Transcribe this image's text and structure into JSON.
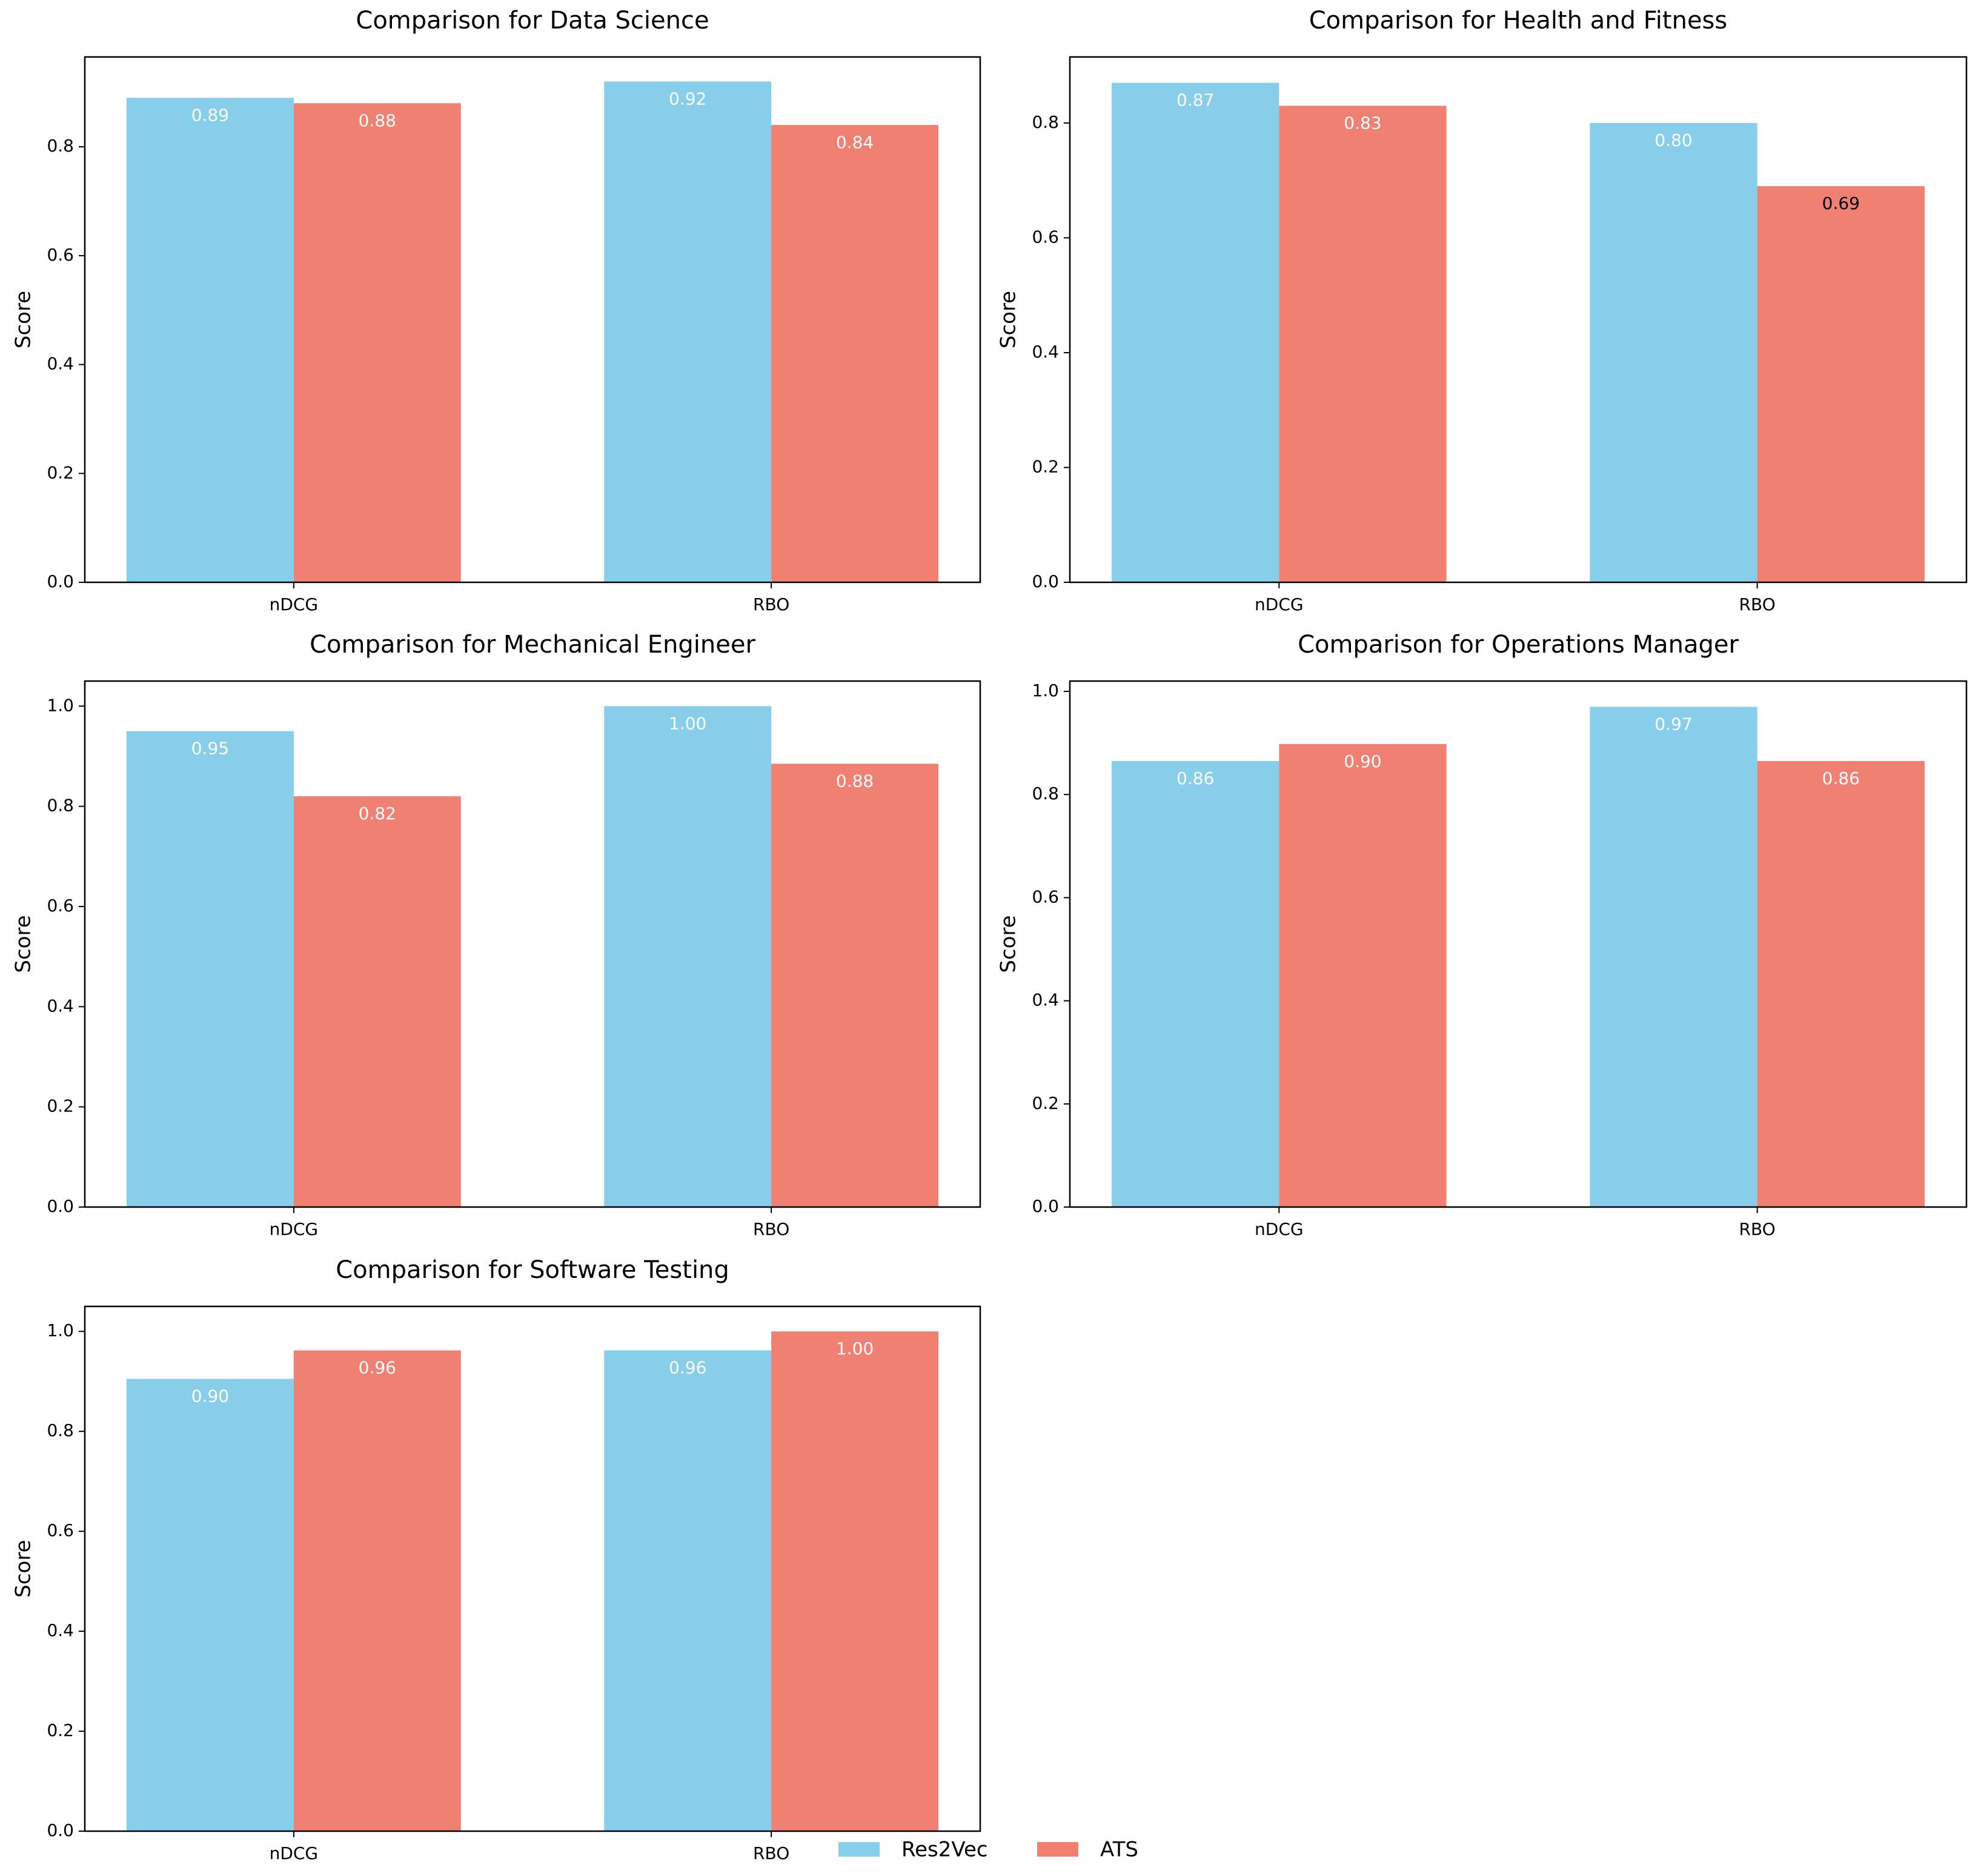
{
  "colors": {
    "res2vec": "#87CEEB",
    "ats": "#F08072"
  },
  "legend": [
    {
      "name": "Res2Vec",
      "color": "#87CEEB"
    },
    {
      "name": "ATS",
      "color": "#F08072"
    }
  ],
  "chart_data": [
    {
      "type": "bar",
      "title": "Comparison for Data Science",
      "xlabel": "",
      "ylabel": "Score",
      "categories": [
        "nDCG",
        "RBO"
      ],
      "series": [
        {
          "name": "Res2Vec",
          "values": [
            0.89,
            0.92
          ]
        },
        {
          "name": "ATS",
          "values": [
            0.88,
            0.84
          ]
        }
      ],
      "value_labels": [
        [
          "0.89",
          "0.92"
        ],
        [
          "0.88",
          "0.84"
        ]
      ],
      "ylim": [
        0,
        0.965
      ],
      "yticks": [
        "0.0",
        "0.2",
        "0.4",
        "0.6",
        "0.8"
      ],
      "legend": false
    },
    {
      "type": "bar",
      "title": "Comparison for Health and Fitness",
      "xlabel": "",
      "ylabel": "Score",
      "categories": [
        "nDCG",
        "RBO"
      ],
      "series": [
        {
          "name": "Res2Vec",
          "values": [
            0.87,
            0.8
          ]
        },
        {
          "name": "ATS",
          "values": [
            0.83,
            0.69
          ]
        }
      ],
      "value_labels": [
        [
          "0.87",
          "0.80"
        ],
        [
          "0.83",
          "0.69"
        ]
      ],
      "ylim": [
        0,
        0.915
      ],
      "yticks": [
        "0.0",
        "0.2",
        "0.4",
        "0.6",
        "0.8"
      ],
      "legend": false
    },
    {
      "type": "bar",
      "title": "Comparison for Mechanical Engineer",
      "xlabel": "",
      "ylabel": "Score",
      "categories": [
        "nDCG",
        "RBO"
      ],
      "series": [
        {
          "name": "Res2Vec",
          "values": [
            0.95,
            1.0
          ]
        },
        {
          "name": "ATS",
          "values": [
            0.82,
            0.885
          ]
        }
      ],
      "value_labels": [
        [
          "0.95",
          "1.00"
        ],
        [
          "0.82",
          "0.88"
        ]
      ],
      "ylim": [
        0,
        1.05
      ],
      "yticks": [
        "0.0",
        "0.2",
        "0.4",
        "0.6",
        "0.8",
        "1.0"
      ],
      "legend": false
    },
    {
      "type": "bar",
      "title": "Comparison for Operations Manager",
      "xlabel": "",
      "ylabel": "Score",
      "categories": [
        "nDCG",
        "RBO"
      ],
      "series": [
        {
          "name": "Res2Vec",
          "values": [
            0.865,
            0.97
          ]
        },
        {
          "name": "ATS",
          "values": [
            0.898,
            0.865
          ]
        }
      ],
      "value_labels": [
        [
          "0.86",
          "0.97"
        ],
        [
          "0.90",
          "0.86"
        ]
      ],
      "ylim": [
        0,
        1.02
      ],
      "yticks": [
        "0.0",
        "0.2",
        "0.4",
        "0.6",
        "0.8",
        "1.0"
      ],
      "legend": false
    },
    {
      "type": "bar",
      "title": "Comparison for Software Testing",
      "xlabel": "",
      "ylabel": "Score",
      "categories": [
        "nDCG",
        "RBO"
      ],
      "series": [
        {
          "name": "Res2Vec",
          "values": [
            0.905,
            0.962
          ]
        },
        {
          "name": "ATS",
          "values": [
            0.962,
            1.0
          ]
        }
      ],
      "value_labels": [
        [
          "0.90",
          "0.96"
        ],
        [
          "0.96",
          "1.00"
        ]
      ],
      "ylim": [
        0,
        1.05
      ],
      "yticks": [
        "0.0",
        "0.2",
        "0.4",
        "0.6",
        "0.8",
        "1.0"
      ],
      "legend": true
    }
  ]
}
